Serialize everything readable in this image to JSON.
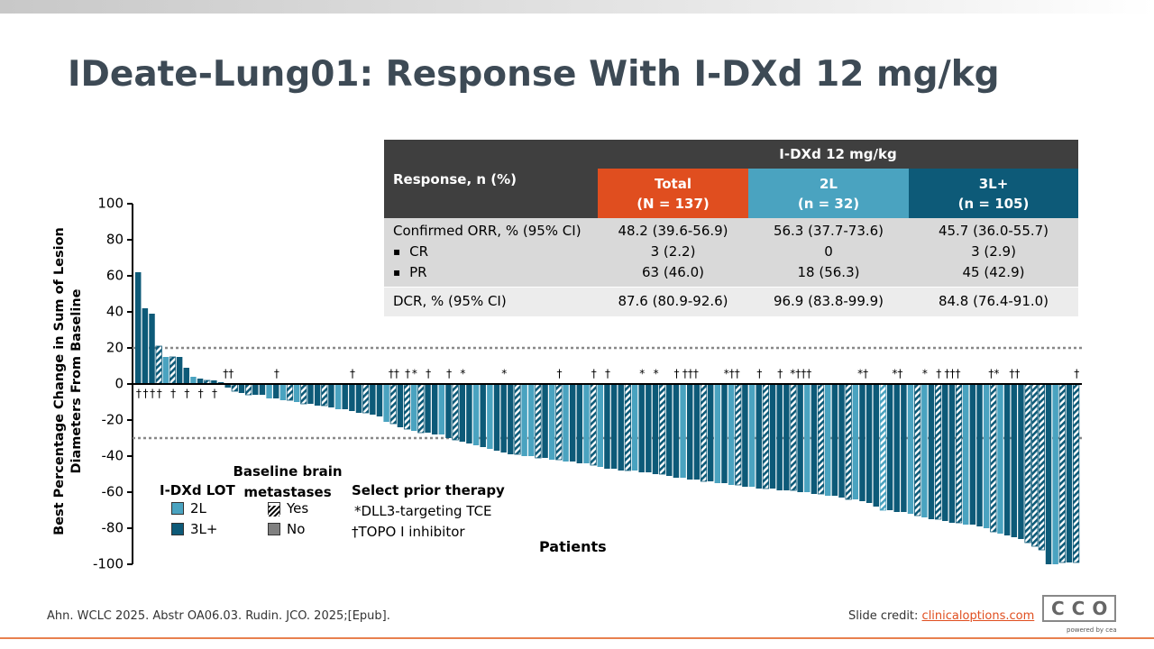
{
  "title": "IDeate-Lung01: Response With I-DXd 12 mg/kg",
  "chart_data": {
    "type": "waterfall",
    "y_label": "Best Percentage Change in Sum of Lesion Diameters From Baseline",
    "x_label": "Patients",
    "ylim": [
      -100,
      100
    ],
    "yticks": [
      -100,
      -80,
      -60,
      -40,
      -20,
      0,
      20,
      40,
      60,
      80,
      100
    ],
    "ref_lines": [
      20,
      -30
    ],
    "colors": {
      "2L": "#4aa3c0",
      "3L+": "#0d5a78",
      "No": "#808080"
    },
    "values": [
      62,
      42,
      39,
      21,
      15,
      15,
      15,
      9,
      4,
      3,
      2,
      2,
      1,
      -2,
      -4,
      -5,
      -6,
      -6,
      -6,
      -8,
      -8,
      -9,
      -9,
      -10,
      -11,
      -11,
      -12,
      -12,
      -13,
      -14,
      -14,
      -15,
      -16,
      -16,
      -17,
      -18,
      -21,
      -22,
      -24,
      -25,
      -26,
      -27,
      -27,
      -28,
      -28,
      -30,
      -31,
      -32,
      -33,
      -34,
      -35,
      -36,
      -37,
      -38,
      -39,
      -39,
      -40,
      -40,
      -41,
      -41,
      -42,
      -42,
      -43,
      -43,
      -44,
      -44,
      -45,
      -46,
      -47,
      -47,
      -48,
      -48,
      -48,
      -49,
      -49,
      -50,
      -50,
      -51,
      -52,
      -52,
      -53,
      -53,
      -54,
      -54,
      -55,
      -55,
      -56,
      -56,
      -57,
      -57,
      -58,
      -58,
      -58,
      -59,
      -59,
      -59,
      -60,
      -60,
      -61,
      -61,
      -62,
      -62,
      -63,
      -64,
      -64,
      -65,
      -66,
      -68,
      -70,
      -70,
      -71,
      -71,
      -72,
      -73,
      -74,
      -75,
      -75,
      -76,
      -77,
      -77,
      -78,
      -78,
      -79,
      -80,
      -82,
      -83,
      -84,
      -85,
      -86,
      -88,
      -90,
      -92,
      -100,
      -100,
      -99,
      -99,
      -99
    ],
    "lot": [
      "3L+",
      "3L+",
      "3L+",
      "3L+",
      "2L",
      "3L+",
      "3L+",
      "3L+",
      "2L",
      "3L+",
      "3L+",
      "3L+",
      "3L+",
      "3L+",
      "3L+",
      "3L+",
      "3L+",
      "3L+",
      "3L+",
      "2L",
      "3L+",
      "2L",
      "3L+",
      "2L",
      "3L+",
      "3L+",
      "3L+",
      "3L+",
      "3L+",
      "2L",
      "3L+",
      "3L+",
      "3L+",
      "3L+",
      "3L+",
      "3L+",
      "2L",
      "3L+",
      "3L+",
      "3L+",
      "2L",
      "3L+",
      "3L+",
      "3L+",
      "2L",
      "3L+",
      "3L+",
      "3L+",
      "3L+",
      "2L",
      "3L+",
      "2L",
      "3L+",
      "3L+",
      "3L+",
      "3L+",
      "2L",
      "2L",
      "3L+",
      "3L+",
      "2L",
      "3L+",
      "2L",
      "3L+",
      "3L+",
      "2L",
      "3L+",
      "2L",
      "3L+",
      "3L+",
      "3L+",
      "3L+",
      "2L",
      "3L+",
      "3L+",
      "3L+",
      "3L+",
      "3L+",
      "3L+",
      "2L",
      "3L+",
      "3L+",
      "3L+",
      "3L+",
      "2L",
      "3L+",
      "2L",
      "3L+",
      "3L+",
      "2L",
      "3L+",
      "3L+",
      "3L+",
      "3L+",
      "3L+",
      "3L+",
      "3L+",
      "2L",
      "3L+",
      "3L+",
      "2L",
      "3L+",
      "3L+",
      "3L+",
      "2L",
      "3L+",
      "3L+",
      "3L+",
      "2L",
      "3L+",
      "3L+",
      "3L+",
      "2L",
      "3L+",
      "2L",
      "3L+",
      "3L+",
      "3L+",
      "3L+",
      "3L+",
      "2L",
      "3L+",
      "3L+",
      "2L",
      "3L+",
      "2L",
      "3L+",
      "3L+",
      "3L+",
      "3L+",
      "3L+",
      "3L+",
      "3L+",
      "2L",
      "3L+",
      "3L+",
      "3L+"
    ],
    "brain_mets": [
      false,
      false,
      false,
      true,
      false,
      true,
      false,
      false,
      false,
      false,
      true,
      false,
      false,
      false,
      true,
      false,
      true,
      false,
      false,
      false,
      false,
      false,
      true,
      false,
      true,
      false,
      false,
      true,
      false,
      false,
      false,
      false,
      false,
      true,
      false,
      false,
      false,
      true,
      false,
      true,
      false,
      true,
      false,
      false,
      false,
      false,
      true,
      false,
      false,
      false,
      false,
      false,
      false,
      false,
      false,
      true,
      false,
      false,
      true,
      false,
      false,
      true,
      false,
      false,
      false,
      false,
      true,
      false,
      false,
      false,
      false,
      true,
      false,
      false,
      false,
      false,
      true,
      false,
      false,
      false,
      false,
      false,
      true,
      false,
      false,
      false,
      false,
      true,
      false,
      false,
      false,
      true,
      false,
      false,
      false,
      true,
      false,
      false,
      false,
      true,
      false,
      false,
      false,
      true,
      false,
      false,
      false,
      false,
      true,
      false,
      false,
      false,
      false,
      true,
      false,
      false,
      true,
      false,
      false,
      true,
      false,
      false,
      false,
      false,
      true,
      false,
      false,
      false,
      false,
      true,
      true,
      true,
      false,
      false,
      true,
      false,
      true
    ],
    "markers": [
      "†",
      "†",
      "†",
      "†",
      null,
      "†",
      null,
      "†",
      null,
      "†",
      null,
      "†",
      null,
      "††",
      null,
      null,
      null,
      null,
      null,
      null,
      "†",
      null,
      null,
      null,
      null,
      null,
      null,
      null,
      null,
      null,
      null,
      "†",
      null,
      null,
      null,
      null,
      null,
      "††",
      null,
      "†",
      "*",
      null,
      "†",
      null,
      null,
      "†",
      null,
      "*",
      null,
      null,
      null,
      null,
      null,
      "*",
      null,
      null,
      null,
      null,
      null,
      null,
      null,
      "†",
      null,
      null,
      null,
      null,
      "†",
      null,
      "†",
      null,
      null,
      null,
      null,
      "*",
      null,
      "*",
      null,
      null,
      "†",
      null,
      "†††",
      null,
      null,
      null,
      null,
      null,
      "*††",
      null,
      null,
      null,
      "†",
      null,
      null,
      "†",
      null,
      null,
      "*†††",
      null,
      null,
      null,
      null,
      null,
      null,
      null,
      null,
      "*†",
      null,
      null,
      null,
      null,
      "*†",
      null,
      null,
      null,
      "*",
      null,
      "†",
      null,
      "†††",
      null,
      null,
      null,
      null,
      null,
      "†*",
      null,
      null,
      "††",
      null,
      null,
      null,
      null,
      null,
      null,
      null,
      null,
      "†"
    ],
    "legend": {
      "lot_title": "I-DXd LOT",
      "lot_items": [
        "2L",
        "3L+"
      ],
      "brain_title": "Baseline brain metastases",
      "brain_items": [
        "Yes",
        "No"
      ],
      "prior_title": "Select prior therapy",
      "prior_items": [
        "*DLL3-targeting TCE",
        "†TOPO I inhibitor"
      ]
    }
  },
  "table": {
    "row_header": "Response, n (%)",
    "group_header": "I-DXd 12 mg/kg",
    "columns": [
      {
        "name": "Total",
        "n": "(N = 137)",
        "color": "#e04e1f"
      },
      {
        "name": "2L",
        "n": "(n = 32)",
        "color": "#4aa3c0"
      },
      {
        "name": "3L+",
        "n": "(n = 105)",
        "color": "#0d5a78"
      }
    ],
    "rows": [
      {
        "label": "Confirmed ORR, % (95% CI)",
        "cells": [
          "48.2 (39.6-56.9)",
          "56.3 (37.7-73.6)",
          "45.7 (36.0-55.7)"
        ]
      },
      {
        "label": "CR",
        "cells": [
          "3 (2.2)",
          "0",
          "3 (2.9)"
        ]
      },
      {
        "label": "PR",
        "cells": [
          "63 (46.0)",
          "18 (56.3)",
          "45 (42.9)"
        ]
      },
      {
        "label": "DCR, % (95% CI)",
        "cells": [
          "87.6 (80.9-92.6)",
          "96.9 (83.8-99.9)",
          "84.8 (76.4-91.0)"
        ]
      }
    ]
  },
  "footer": {
    "citation": "Ahn. WCLC 2025. Abstr OA06.03. Rudin. JCO. 2025;[Epub].",
    "credit": "Slide credit:",
    "link": "clinicaloptions.com",
    "logo": "CCO",
    "logo_sub": "powered by cea"
  }
}
